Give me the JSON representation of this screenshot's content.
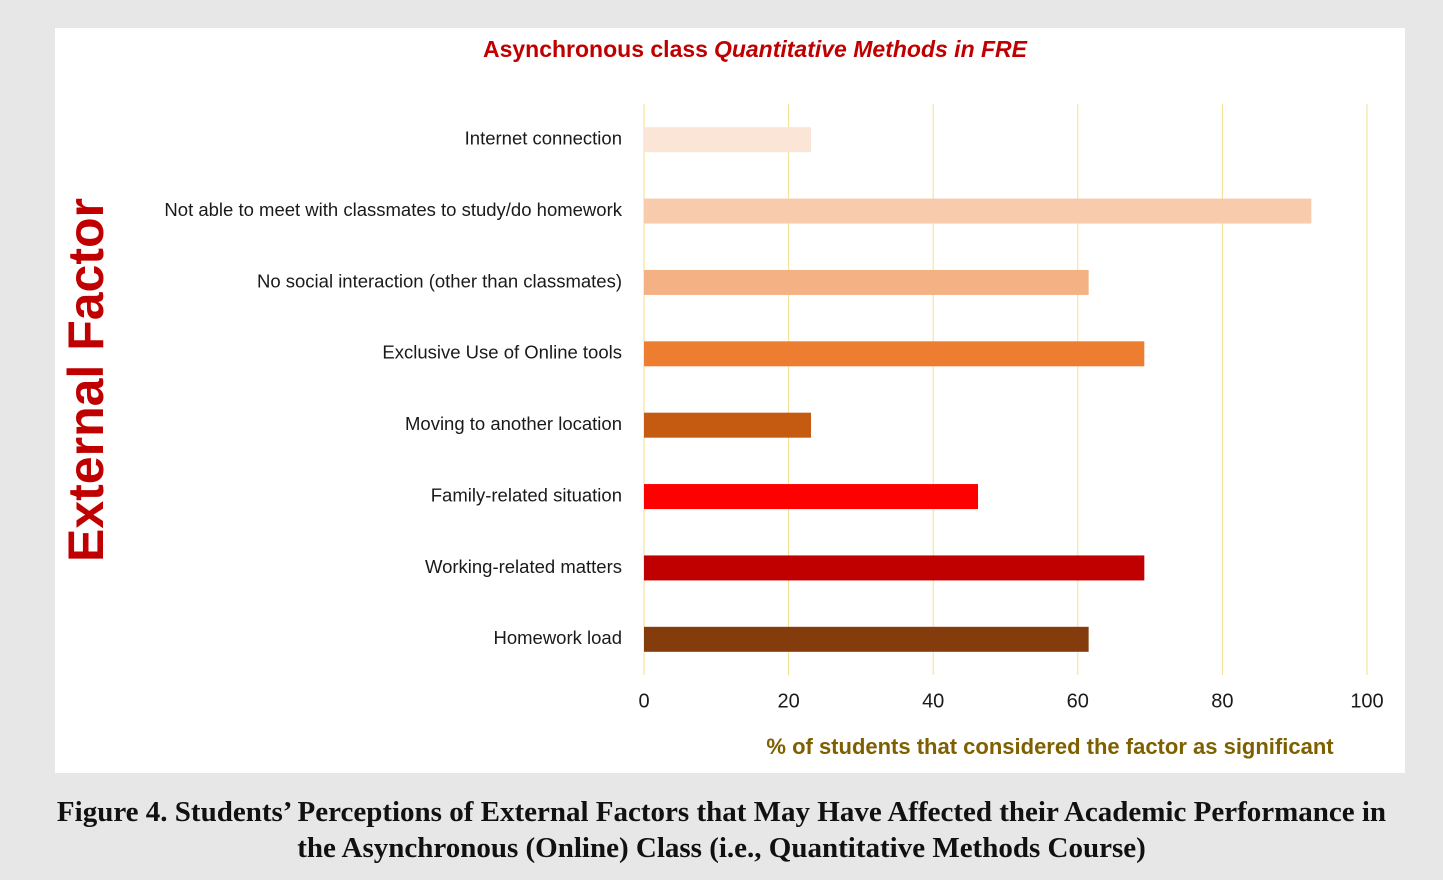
{
  "chart_data": {
    "type": "barh",
    "title": "Asynchronous class",
    "title_emphasis": "Quantitative Methods in FRE",
    "ylabel": "External Factor",
    "xlabel": "% of students that considered the factor as significant",
    "categories": [
      "Internet connection",
      "Not able to meet with classmates to study/do homework",
      "No social interaction (other than classmates)",
      "Exclusive Use of Online tools",
      "Moving to another location",
      "Family-related situation",
      "Working-related matters",
      "Homework load"
    ],
    "values": [
      23.1,
      92.3,
      61.5,
      69.2,
      23.1,
      46.2,
      69.2,
      61.5
    ],
    "colors": [
      "#fbe5d6",
      "#f8cbad",
      "#f4b183",
      "#ed7d31",
      "#c55a11",
      "#ff0000",
      "#c00000",
      "#843c0c"
    ],
    "xlim": [
      0,
      100
    ],
    "xticks": [
      0,
      20,
      40,
      60,
      80,
      100
    ],
    "grid": true
  },
  "caption": "Figure 4. Students’ Perceptions of External Factors that May Have Affected their Academic Performance in the Asynchronous (Online) Class (i.e., Quantitative Methods Course)"
}
